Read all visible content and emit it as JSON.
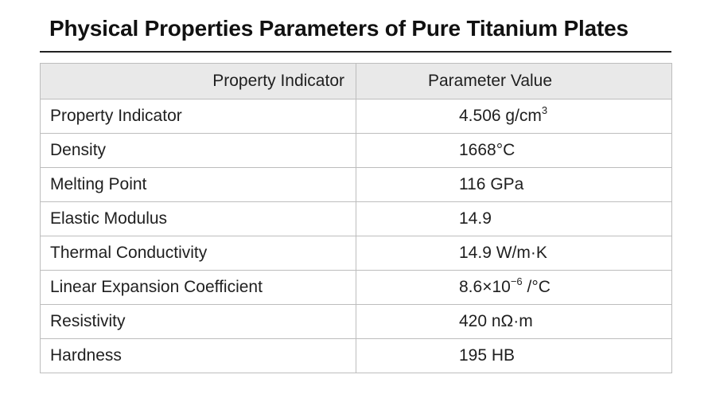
{
  "title": "Physical Properties Parameters of Pure Titanium Plates",
  "table": {
    "headers": [
      "Property Indicator",
      "Parameter Value"
    ],
    "rows": [
      {
        "property": "Property Indicator",
        "value": "4.506 g/cm",
        "sup": "3",
        "suffix": ""
      },
      {
        "property": "Density",
        "value": "1668°C",
        "sup": "",
        "suffix": ""
      },
      {
        "property": "Melting Point",
        "value": "116 GPa",
        "sup": "",
        "suffix": ""
      },
      {
        "property": "Elastic Modulus",
        "value": "14.9",
        "sup": "",
        "suffix": ""
      },
      {
        "property": "Thermal Conductivity",
        "value": "14.9 W/m·K",
        "sup": "",
        "suffix": ""
      },
      {
        "property": "Linear Expansion Coefficient",
        "value": "8.6×10",
        "sup": "−6",
        "suffix": " /°C"
      },
      {
        "property": "Resistivity",
        "value": "420 nΩ·m",
        "sup": "",
        "suffix": ""
      },
      {
        "property": "Hardness",
        "value": "195 HB",
        "sup": "",
        "suffix": ""
      }
    ]
  }
}
